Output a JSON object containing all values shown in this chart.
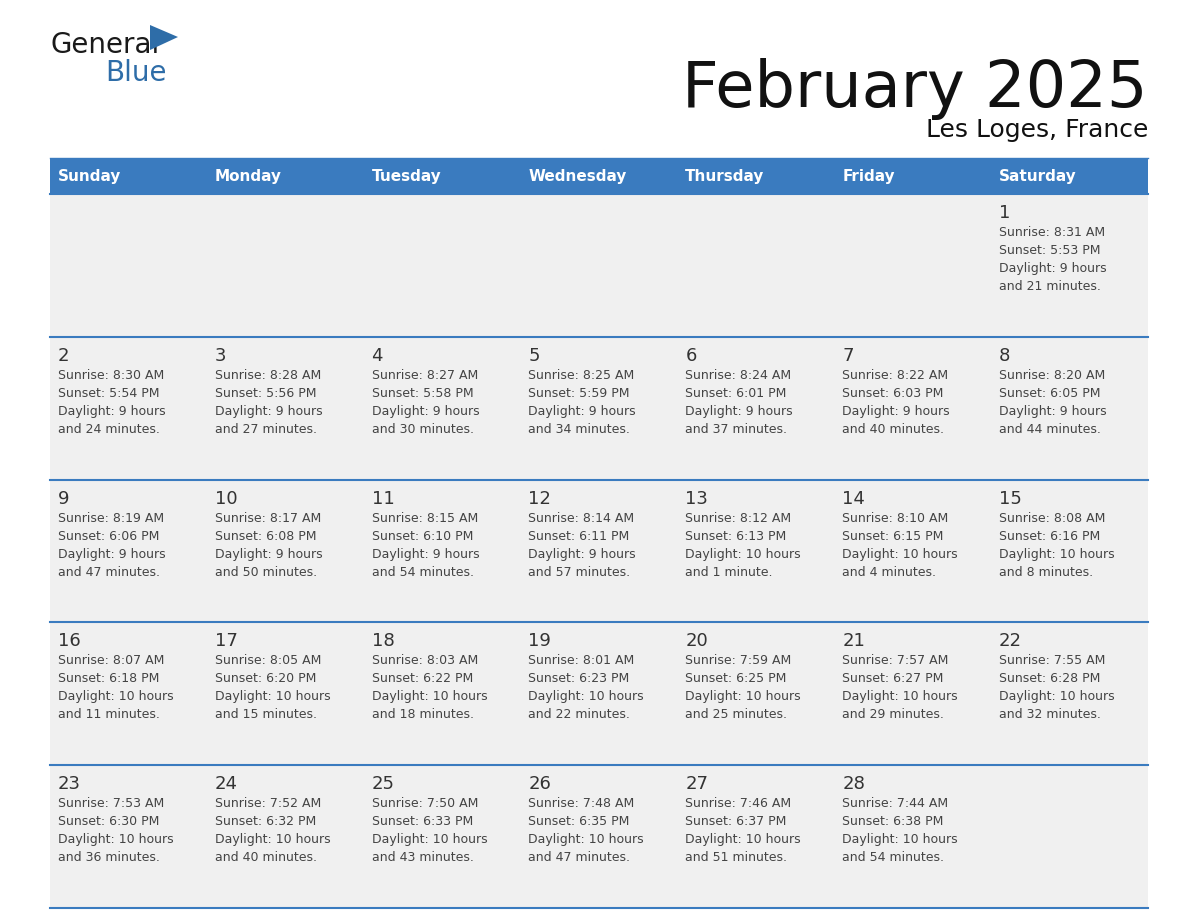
{
  "title": "February 2025",
  "subtitle": "Les Loges, France",
  "header_color": "#3a7bbf",
  "header_text_color": "#ffffff",
  "days_of_week": [
    "Sunday",
    "Monday",
    "Tuesday",
    "Wednesday",
    "Thursday",
    "Friday",
    "Saturday"
  ],
  "background_color": "#ffffff",
  "cell_bg": "#f0f0f0",
  "border_color": "#3a7bbf",
  "day_number_color": "#333333",
  "info_text_color": "#444444",
  "separator_color": "#3a7bbf",
  "logo_general_color": "#1a1a1a",
  "logo_blue_color": "#2e6da8",
  "logo_triangle_color": "#2e6da8",
  "calendar_data": [
    [
      null,
      null,
      null,
      null,
      null,
      null,
      {
        "day": 1,
        "sunrise": "8:31 AM",
        "sunset": "5:53 PM",
        "daylight": "9 hours and 21 minutes."
      }
    ],
    [
      {
        "day": 2,
        "sunrise": "8:30 AM",
        "sunset": "5:54 PM",
        "daylight": "9 hours and 24 minutes."
      },
      {
        "day": 3,
        "sunrise": "8:28 AM",
        "sunset": "5:56 PM",
        "daylight": "9 hours and 27 minutes."
      },
      {
        "day": 4,
        "sunrise": "8:27 AM",
        "sunset": "5:58 PM",
        "daylight": "9 hours and 30 minutes."
      },
      {
        "day": 5,
        "sunrise": "8:25 AM",
        "sunset": "5:59 PM",
        "daylight": "9 hours and 34 minutes."
      },
      {
        "day": 6,
        "sunrise": "8:24 AM",
        "sunset": "6:01 PM",
        "daylight": "9 hours and 37 minutes."
      },
      {
        "day": 7,
        "sunrise": "8:22 AM",
        "sunset": "6:03 PM",
        "daylight": "9 hours and 40 minutes."
      },
      {
        "day": 8,
        "sunrise": "8:20 AM",
        "sunset": "6:05 PM",
        "daylight": "9 hours and 44 minutes."
      }
    ],
    [
      {
        "day": 9,
        "sunrise": "8:19 AM",
        "sunset": "6:06 PM",
        "daylight": "9 hours and 47 minutes."
      },
      {
        "day": 10,
        "sunrise": "8:17 AM",
        "sunset": "6:08 PM",
        "daylight": "9 hours and 50 minutes."
      },
      {
        "day": 11,
        "sunrise": "8:15 AM",
        "sunset": "6:10 PM",
        "daylight": "9 hours and 54 minutes."
      },
      {
        "day": 12,
        "sunrise": "8:14 AM",
        "sunset": "6:11 PM",
        "daylight": "9 hours and 57 minutes."
      },
      {
        "day": 13,
        "sunrise": "8:12 AM",
        "sunset": "6:13 PM",
        "daylight": "10 hours and 1 minute."
      },
      {
        "day": 14,
        "sunrise": "8:10 AM",
        "sunset": "6:15 PM",
        "daylight": "10 hours and 4 minutes."
      },
      {
        "day": 15,
        "sunrise": "8:08 AM",
        "sunset": "6:16 PM",
        "daylight": "10 hours and 8 minutes."
      }
    ],
    [
      {
        "day": 16,
        "sunrise": "8:07 AM",
        "sunset": "6:18 PM",
        "daylight": "10 hours and 11 minutes."
      },
      {
        "day": 17,
        "sunrise": "8:05 AM",
        "sunset": "6:20 PM",
        "daylight": "10 hours and 15 minutes."
      },
      {
        "day": 18,
        "sunrise": "8:03 AM",
        "sunset": "6:22 PM",
        "daylight": "10 hours and 18 minutes."
      },
      {
        "day": 19,
        "sunrise": "8:01 AM",
        "sunset": "6:23 PM",
        "daylight": "10 hours and 22 minutes."
      },
      {
        "day": 20,
        "sunrise": "7:59 AM",
        "sunset": "6:25 PM",
        "daylight": "10 hours and 25 minutes."
      },
      {
        "day": 21,
        "sunrise": "7:57 AM",
        "sunset": "6:27 PM",
        "daylight": "10 hours and 29 minutes."
      },
      {
        "day": 22,
        "sunrise": "7:55 AM",
        "sunset": "6:28 PM",
        "daylight": "10 hours and 32 minutes."
      }
    ],
    [
      {
        "day": 23,
        "sunrise": "7:53 AM",
        "sunset": "6:30 PM",
        "daylight": "10 hours and 36 minutes."
      },
      {
        "day": 24,
        "sunrise": "7:52 AM",
        "sunset": "6:32 PM",
        "daylight": "10 hours and 40 minutes."
      },
      {
        "day": 25,
        "sunrise": "7:50 AM",
        "sunset": "6:33 PM",
        "daylight": "10 hours and 43 minutes."
      },
      {
        "day": 26,
        "sunrise": "7:48 AM",
        "sunset": "6:35 PM",
        "daylight": "10 hours and 47 minutes."
      },
      {
        "day": 27,
        "sunrise": "7:46 AM",
        "sunset": "6:37 PM",
        "daylight": "10 hours and 51 minutes."
      },
      {
        "day": 28,
        "sunrise": "7:44 AM",
        "sunset": "6:38 PM",
        "daylight": "10 hours and 54 minutes."
      },
      null
    ]
  ]
}
